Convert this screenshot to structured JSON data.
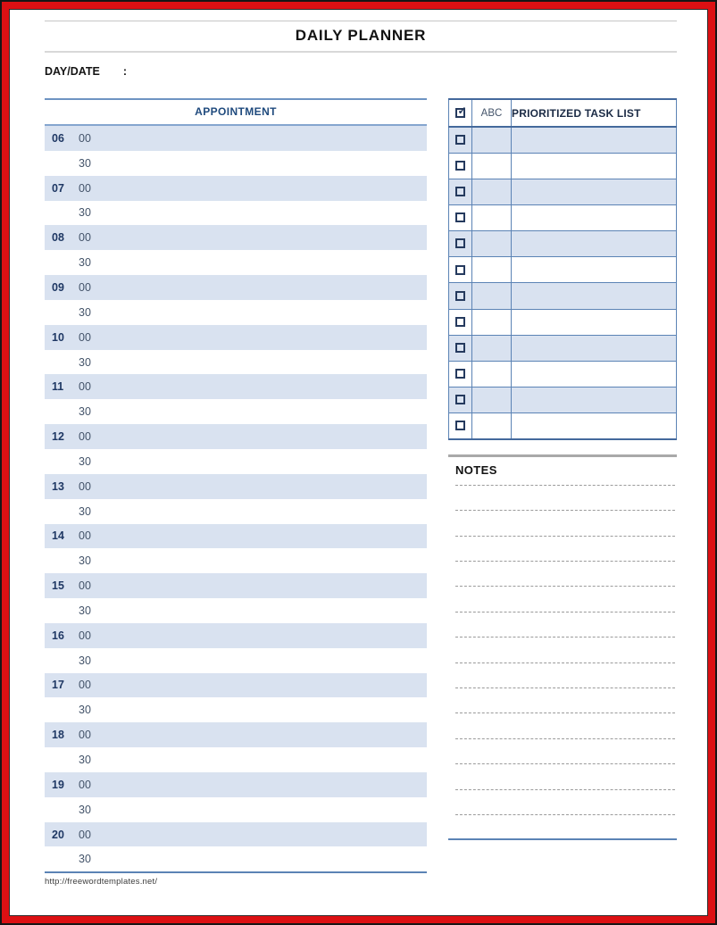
{
  "page": {
    "title": "DAILY PLANNER",
    "footer_url": "http://freewordtemplates.net/"
  },
  "day_date": {
    "label": "DAY/DATE",
    "separator": ":",
    "value": ""
  },
  "appointment": {
    "header": "APPOINTMENT",
    "slots": [
      {
        "hour": "06",
        "minute": "00",
        "shaded": true
      },
      {
        "hour": "",
        "minute": "30",
        "shaded": false
      },
      {
        "hour": "07",
        "minute": "00",
        "shaded": true
      },
      {
        "hour": "",
        "minute": "30",
        "shaded": false
      },
      {
        "hour": "08",
        "minute": "00",
        "shaded": true
      },
      {
        "hour": "",
        "minute": "30",
        "shaded": false
      },
      {
        "hour": "09",
        "minute": "00",
        "shaded": true
      },
      {
        "hour": "",
        "minute": "30",
        "shaded": false
      },
      {
        "hour": "10",
        "minute": "00",
        "shaded": true
      },
      {
        "hour": "",
        "minute": "30",
        "shaded": false
      },
      {
        "hour": "11",
        "minute": "00",
        "shaded": true
      },
      {
        "hour": "",
        "minute": "30",
        "shaded": false
      },
      {
        "hour": "12",
        "minute": "00",
        "shaded": true
      },
      {
        "hour": "",
        "minute": "30",
        "shaded": false
      },
      {
        "hour": "13",
        "minute": "00",
        "shaded": true
      },
      {
        "hour": "",
        "minute": "30",
        "shaded": false
      },
      {
        "hour": "14",
        "minute": "00",
        "shaded": true
      },
      {
        "hour": "",
        "minute": "30",
        "shaded": false
      },
      {
        "hour": "15",
        "minute": "00",
        "shaded": true
      },
      {
        "hour": "",
        "minute": "30",
        "shaded": false
      },
      {
        "hour": "16",
        "minute": "00",
        "shaded": true
      },
      {
        "hour": "",
        "minute": "30",
        "shaded": false
      },
      {
        "hour": "17",
        "minute": "00",
        "shaded": true
      },
      {
        "hour": "",
        "minute": "30",
        "shaded": false
      },
      {
        "hour": "18",
        "minute": "00",
        "shaded": true
      },
      {
        "hour": "",
        "minute": "30",
        "shaded": false
      },
      {
        "hour": "19",
        "minute": "00",
        "shaded": true
      },
      {
        "hour": "",
        "minute": "30",
        "shaded": false
      },
      {
        "hour": "20",
        "minute": "00",
        "shaded": true
      },
      {
        "hour": "",
        "minute": "30",
        "shaded": false
      }
    ]
  },
  "task_list": {
    "header": {
      "check_icon": "checked-checkbox",
      "check_symbol": "✓",
      "abc_label": "ABC",
      "title": "PRIORITIZED TASK LIST"
    },
    "rows": [
      {
        "checked": false,
        "abc": "",
        "task": "",
        "shaded": true
      },
      {
        "checked": false,
        "abc": "",
        "task": "",
        "shaded": false
      },
      {
        "checked": false,
        "abc": "",
        "task": "",
        "shaded": true
      },
      {
        "checked": false,
        "abc": "",
        "task": "",
        "shaded": false
      },
      {
        "checked": false,
        "abc": "",
        "task": "",
        "shaded": true
      },
      {
        "checked": false,
        "abc": "",
        "task": "",
        "shaded": false
      },
      {
        "checked": false,
        "abc": "",
        "task": "",
        "shaded": true
      },
      {
        "checked": false,
        "abc": "",
        "task": "",
        "shaded": false
      },
      {
        "checked": false,
        "abc": "",
        "task": "",
        "shaded": true
      },
      {
        "checked": false,
        "abc": "",
        "task": "",
        "shaded": false
      },
      {
        "checked": false,
        "abc": "",
        "task": "",
        "shaded": true
      },
      {
        "checked": false,
        "abc": "",
        "task": "",
        "shaded": false
      }
    ]
  },
  "notes": {
    "header": "NOTES",
    "ruled_lines_total": 14
  },
  "colors": {
    "page_border_red": "#dc1013",
    "table_border_blue": "#5b83b5",
    "table_border_heavy": "#44699c",
    "row_shade": "#d9e2f0",
    "hour_navy": "#1f3864",
    "minute_slate": "#44546a",
    "header_navy": "#1f4a7d",
    "notes_gray_line": "#a9a9a9"
  }
}
